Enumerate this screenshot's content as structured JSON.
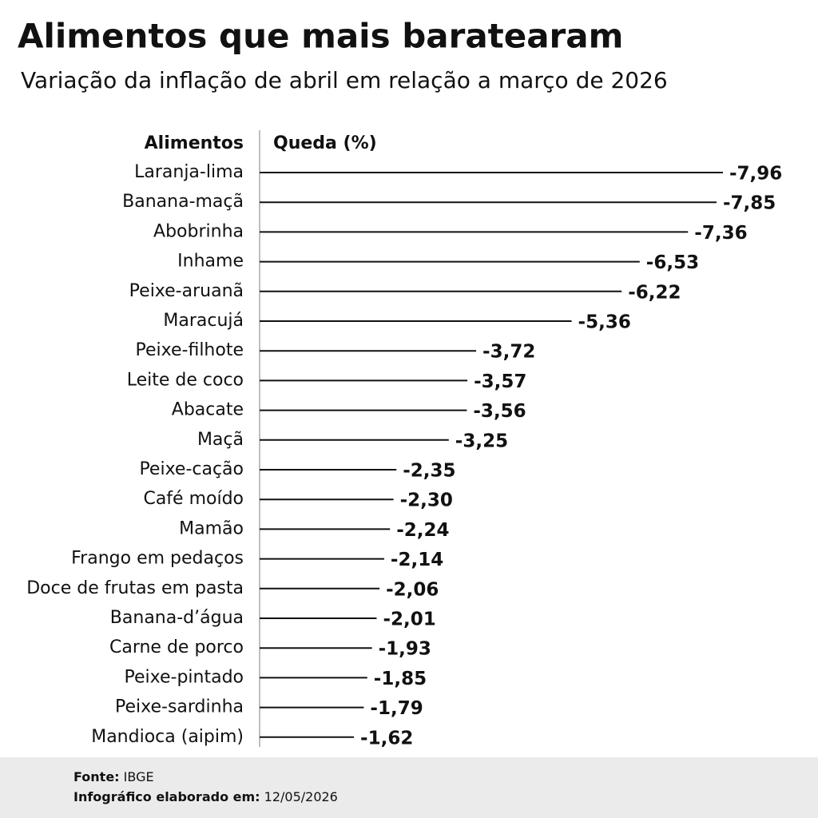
{
  "chart_data": {
    "type": "bar",
    "orientation": "horizontal",
    "title": "Alimentos que mais baratearam",
    "subtitle": "Variação da inflação de abril em relação a março de 2026",
    "category_header": "Alimentos",
    "value_header": "Queda (%)",
    "categories": [
      "Laranja-lima",
      "Banana-maçã",
      "Abobrinha",
      "Inhame",
      "Peixe-aruanã",
      "Maracujá",
      "Peixe-filhote",
      "Leite de coco",
      "Abacate",
      "Maçã",
      "Peixe-cação",
      "Café moído",
      "Mamão",
      "Frango em pedaços",
      "Doce de frutas em pasta",
      "Banana-d’água",
      "Carne de porco",
      "Peixe-pintado",
      "Peixe-sardinha",
      "Mandioca (aipim)"
    ],
    "values": [
      -7.96,
      -7.85,
      -7.36,
      -6.53,
      -6.22,
      -5.36,
      -3.72,
      -3.57,
      -3.56,
      -3.25,
      -2.35,
      -2.3,
      -2.24,
      -2.14,
      -2.06,
      -2.01,
      -1.93,
      -1.85,
      -1.79,
      -1.62
    ],
    "value_labels": [
      "-7,96",
      "-7,85",
      "-7,36",
      "-6,53",
      "-6,22",
      "-5,36",
      "-3,72",
      "-3,57",
      "-3,56",
      "-3,25",
      "-2,35",
      "-2,30",
      "-2,24",
      "-2,14",
      "-2,06",
      "-2,01",
      "-1,93",
      "-1,85",
      "-1,79",
      "-1,62"
    ],
    "color": "#111111",
    "source_label": "Fonte:",
    "source": "IBGE",
    "credit_label": "Infográfico elaborado em:",
    "credit": "12/05/2026"
  }
}
